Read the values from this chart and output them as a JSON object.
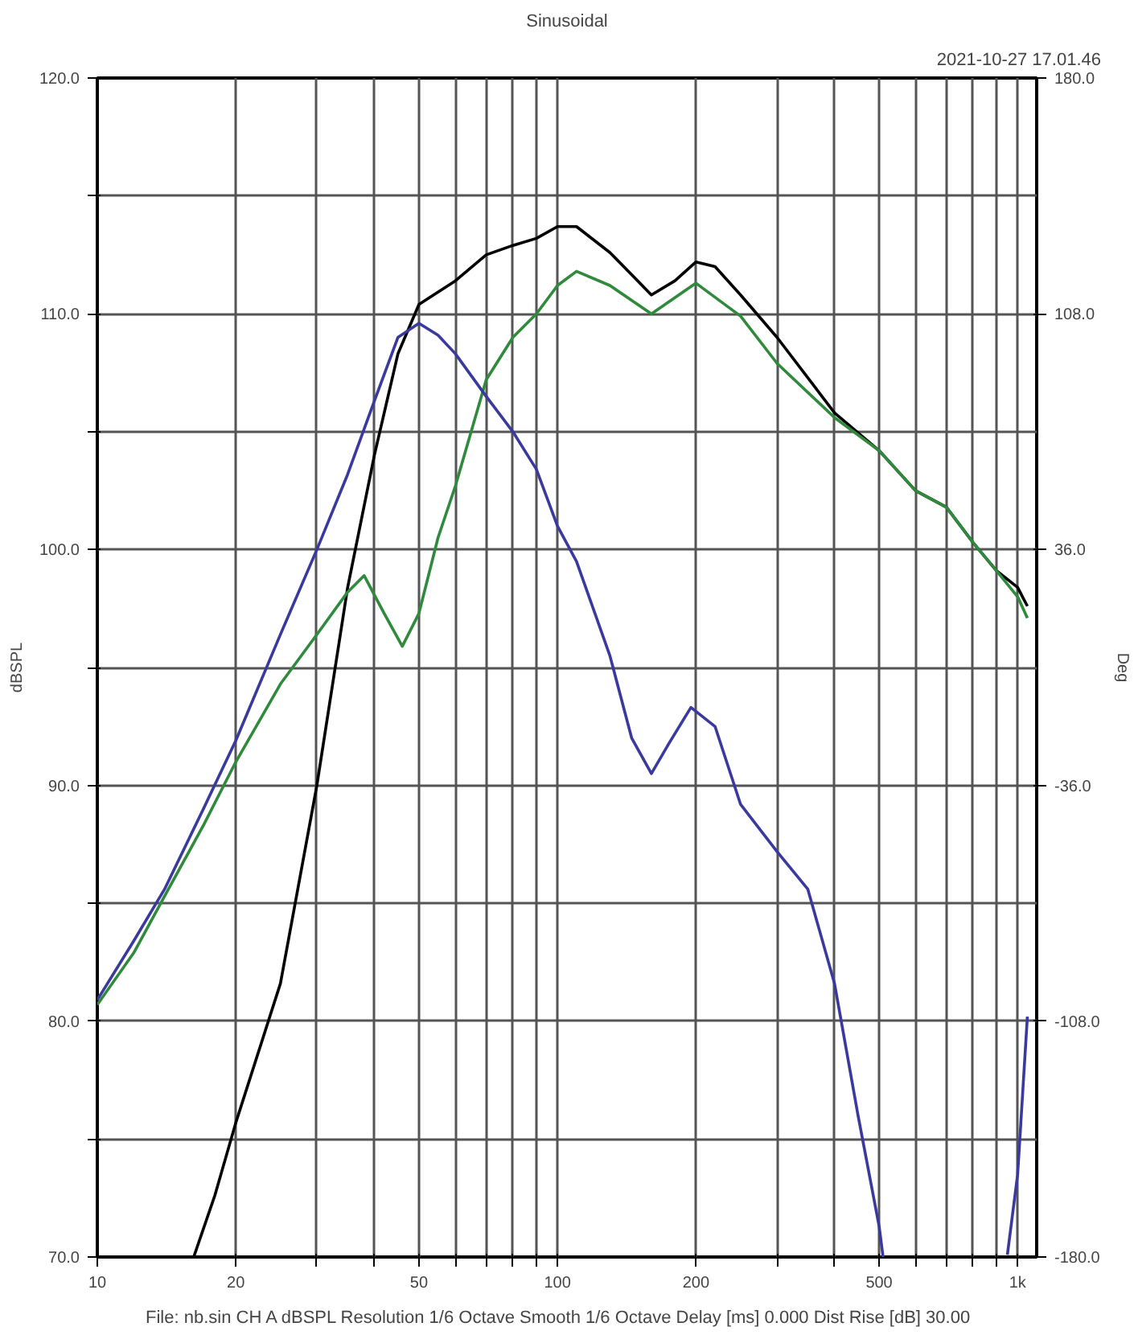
{
  "chart_data": {
    "type": "line",
    "title": "Sinusoidal",
    "subtitle": "2021-10-27 17.01.46",
    "ylabel": "dBSPL",
    "y2label": "Deg",
    "annotations": [
      "File: nb.sin    CH A   dBSPL   Resolution 1/6 Octave   Smooth 1/6 Octave   Delay [ms] 0.000   Dist Rise [dB] 30.00"
    ],
    "log": "x",
    "grid": true,
    "line_style": "solid",
    "marker": "none",
    "xlim": [
      10,
      1100
    ],
    "ylim": [
      70,
      120
    ],
    "y2lim": [
      -180,
      180
    ],
    "xticks": [
      10,
      20,
      {
        "value": 30,
        "label": null
      },
      {
        "value": 40,
        "label": null
      },
      50,
      {
        "value": 60,
        "label": null
      },
      {
        "value": 70,
        "label": null
      },
      {
        "value": 80,
        "label": null
      },
      {
        "value": 90,
        "label": null
      },
      100,
      200,
      {
        "value": 300,
        "label": null
      },
      {
        "value": 400,
        "label": null
      },
      500,
      {
        "value": 600,
        "label": null
      },
      {
        "value": 700,
        "label": null
      },
      {
        "value": 800,
        "label": null
      },
      {
        "value": 900,
        "label": null
      },
      {
        "value": 1000,
        "label": "1k"
      }
    ],
    "yticks": [
      {
        "value": 70,
        "label": "70.0"
      },
      {
        "value": 75,
        "label": null
      },
      {
        "value": 80,
        "label": "80.0"
      },
      {
        "value": 85,
        "label": null
      },
      {
        "value": 90,
        "label": "90.0"
      },
      {
        "value": 95,
        "label": null
      },
      {
        "value": 100,
        "label": "100.0"
      },
      {
        "value": 105,
        "label": null
      },
      {
        "value": 110,
        "label": "110.0"
      },
      {
        "value": 115,
        "label": null
      },
      {
        "value": 120,
        "label": "120.0"
      }
    ],
    "y2ticks": [
      {
        "value": -180,
        "label": "-180.0"
      },
      {
        "value": -108,
        "label": "-108.0"
      },
      {
        "value": -36,
        "label": "-36.0"
      },
      {
        "value": 36,
        "label": "36.0"
      },
      {
        "value": 108,
        "label": "108.0"
      },
      {
        "value": 180,
        "label": "180.0"
      }
    ],
    "series": [
      {
        "color": "#000000",
        "x": [
          16.2,
          18,
          20,
          25,
          30,
          35,
          40,
          45,
          50,
          60,
          70,
          80,
          90,
          100,
          110,
          130,
          160,
          180,
          200,
          220,
          250,
          300,
          400,
          500,
          600,
          700,
          800,
          900,
          1000,
          1050
        ],
        "values": [
          70,
          72.6,
          75.7,
          81.6,
          90,
          98.4,
          104,
          108.3,
          110.4,
          111.4,
          112.5,
          112.9,
          113.2,
          113.7,
          113.7,
          112.6,
          110.8,
          111.4,
          112.2,
          112,
          110.8,
          109,
          105.8,
          104.2,
          102.5,
          101.8,
          100.3,
          99.1,
          98.4,
          97.6
        ]
      },
      {
        "color": "#2f8a3c",
        "x": [
          10,
          12,
          14,
          17,
          20,
          25,
          30,
          35,
          38,
          42,
          46,
          50,
          55,
          60,
          70,
          80,
          90,
          100,
          110,
          130,
          160,
          200,
          250,
          300,
          400,
          500,
          600,
          700,
          800,
          900,
          1000,
          1050
        ],
        "values": [
          80.7,
          82.9,
          85.3,
          88.3,
          91,
          94.3,
          96.4,
          98.2,
          98.9,
          97.3,
          95.9,
          97.3,
          100.5,
          102.7,
          107.2,
          109,
          110,
          111.2,
          111.8,
          111.2,
          110,
          111.3,
          109.9,
          107.9,
          105.6,
          104.2,
          102.5,
          101.8,
          100.3,
          99.1,
          98,
          97.1
        ]
      },
      {
        "color": "#3a3a9e",
        "axis": "y2",
        "x": [
          10,
          12,
          14,
          17,
          20,
          25,
          30,
          35,
          40,
          45,
          50,
          55,
          60,
          70,
          80,
          90,
          100,
          110,
          130,
          145,
          160,
          175,
          195,
          220,
          250,
          300,
          350,
          400,
          450,
          500,
          510,
          700,
          950,
          1000,
          1050
        ],
        "values": [
          -101.5,
          -83.5,
          -67.7,
          -43.2,
          -22.3,
          10.1,
          36,
          59,
          81.4,
          100.8,
          105.1,
          101.5,
          95.8,
          82.8,
          72,
          60.5,
          43.2,
          32.4,
          3.6,
          -21.6,
          -32.4,
          -23,
          -12.2,
          -18,
          -41.8,
          -56.2,
          -67.7,
          -96.5,
          -136.8,
          -170.6,
          -180,
          null,
          -179.3,
          -154.8,
          -106.6
        ]
      }
    ]
  }
}
